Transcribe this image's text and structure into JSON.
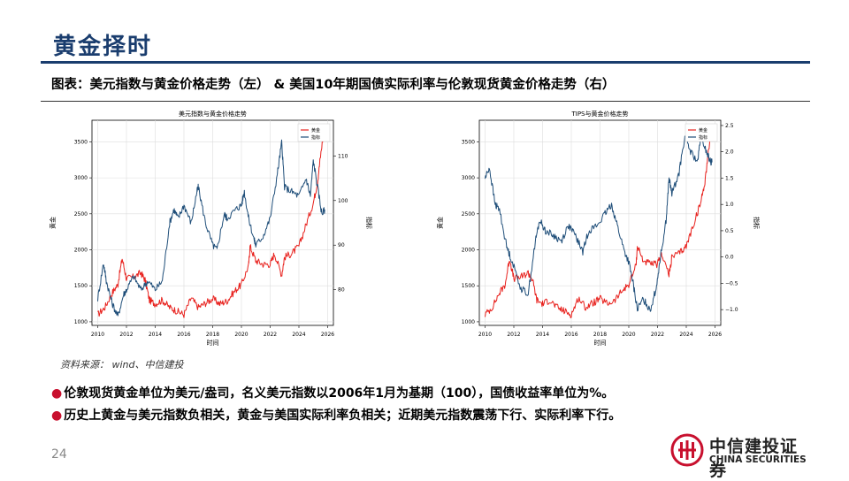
{
  "page": {
    "title": "黄金择时",
    "caption": "图表：美元指数与黄金价格走势（左） & 美国10年期国债实际利率与伦敦现货黄金价格走势（右）",
    "source": "资料来源： wind、中信建投",
    "bullets": [
      "伦敦现货黄金单位为美元/盎司，名义美元指数以2006年1月为基期（100），国债收益率单位为%。",
      "历史上黄金与美元指数负相关，黄金与美国实际利率负相关；近期美元指数震荡下行、实际利率下行。"
    ],
    "page_number": "24",
    "logo_cn": "中信建投证券",
    "logo_en": "CHINA SECURITIES"
  },
  "colors": {
    "gold": "#e8211d",
    "index": "#1f4e79",
    "brand": "#1a3d6e",
    "logo": "#c8102e"
  },
  "chart_data": [
    {
      "type": "line",
      "title": "美元指数与黄金价格走势",
      "xlabel": "时间",
      "ylabel_left": "黄金",
      "ylabel_right": "指标",
      "xlim": [
        2009.6,
        2026.4
      ],
      "ylim_left": [
        950,
        3800
      ],
      "ylim_right": [
        72,
        118
      ],
      "x_ticks": [
        "2010",
        "2012",
        "2014",
        "2016",
        "2018",
        "2020",
        "2022",
        "2024",
        "2026"
      ],
      "y_ticks_left": [
        "1000",
        "1500",
        "2000",
        "2500",
        "3000",
        "3500"
      ],
      "y_ticks_right": [
        "80",
        "90",
        "100",
        "110"
      ],
      "legend": [
        "黄金",
        "指标"
      ],
      "legend_position": "top-right",
      "grid": true,
      "series": [
        {
          "name": "黄金",
          "axis": "left",
          "color": "#e8211d",
          "x": [
            2010.0,
            2010.5,
            2011.0,
            2011.4,
            2011.7,
            2012.0,
            2012.5,
            2013.0,
            2013.3,
            2013.6,
            2014.0,
            2014.5,
            2015.0,
            2015.5,
            2016.0,
            2016.5,
            2017.0,
            2017.5,
            2018.0,
            2018.5,
            2019.0,
            2019.5,
            2020.0,
            2020.5,
            2020.6,
            2021.0,
            2021.5,
            2022.0,
            2022.3,
            2022.8,
            2023.0,
            2023.5,
            2024.0,
            2024.5,
            2025.0,
            2025.3,
            2025.5,
            2025.8
          ],
          "y": [
            1100,
            1200,
            1400,
            1520,
            1880,
            1600,
            1620,
            1680,
            1580,
            1300,
            1250,
            1300,
            1200,
            1150,
            1100,
            1330,
            1200,
            1260,
            1320,
            1250,
            1290,
            1420,
            1520,
            1780,
            2050,
            1850,
            1800,
            1800,
            1950,
            1650,
            1900,
            1950,
            2050,
            2350,
            2650,
            2950,
            3300,
            3750
          ]
        },
        {
          "name": "指标",
          "axis": "right",
          "color": "#1f4e79",
          "x": [
            2010.0,
            2010.4,
            2010.6,
            2011.0,
            2011.4,
            2011.8,
            2012.0,
            2012.5,
            2013.0,
            2013.5,
            2014.0,
            2014.5,
            2015.0,
            2015.3,
            2015.6,
            2016.0,
            2016.5,
            2016.9,
            2017.0,
            2017.5,
            2018.0,
            2018.3,
            2018.8,
            2019.0,
            2019.6,
            2020.0,
            2020.2,
            2020.5,
            2020.9,
            2021.0,
            2021.5,
            2022.0,
            2022.5,
            2022.8,
            2023.0,
            2023.5,
            2024.0,
            2024.5,
            2024.8,
            2025.0,
            2025.3,
            2025.6,
            2025.8
          ],
          "y": [
            78,
            86,
            82,
            77,
            74,
            79,
            80,
            83,
            80,
            82,
            80,
            82,
            95,
            98,
            96,
            99,
            95,
            102,
            103,
            95,
            90,
            89,
            97,
            96,
            98,
            99,
            102,
            96,
            91,
            90,
            92,
            96,
            106,
            113,
            103,
            102,
            101,
            105,
            101,
            109,
            103,
            97,
            98
          ]
        }
      ]
    },
    {
      "type": "line",
      "title": "TIPS与黄金价格走势",
      "xlabel": "时间",
      "ylabel_left": "黄金",
      "ylabel_right": "指标",
      "xlim": [
        2009.6,
        2026.4
      ],
      "ylim_left": [
        950,
        3800
      ],
      "ylim_right": [
        -1.3,
        2.6
      ],
      "x_ticks": [
        "2010",
        "2012",
        "2014",
        "2016",
        "2018",
        "2020",
        "2022",
        "2024",
        "2026"
      ],
      "y_ticks_left": [
        "1000",
        "1500",
        "2000",
        "2500",
        "3000",
        "3500"
      ],
      "y_ticks_right": [
        "−1.0",
        "−0.5",
        "0.0",
        "0.5",
        "1.0",
        "1.5",
        "2.0",
        "2.5"
      ],
      "legend": [
        "黄金",
        "指标"
      ],
      "legend_position": "top-right",
      "grid": true,
      "series": [
        {
          "name": "黄金",
          "axis": "left",
          "color": "#e8211d",
          "x": [
            2010.0,
            2010.5,
            2011.0,
            2011.4,
            2011.7,
            2012.0,
            2012.5,
            2013.0,
            2013.3,
            2013.6,
            2014.0,
            2014.5,
            2015.0,
            2015.5,
            2016.0,
            2016.5,
            2017.0,
            2017.5,
            2018.0,
            2018.5,
            2019.0,
            2019.5,
            2020.0,
            2020.5,
            2020.6,
            2021.0,
            2021.5,
            2022.0,
            2022.3,
            2022.8,
            2023.0,
            2023.5,
            2024.0,
            2024.5,
            2025.0,
            2025.3,
            2025.5,
            2025.8
          ],
          "y": [
            1100,
            1200,
            1400,
            1520,
            1880,
            1600,
            1620,
            1680,
            1580,
            1300,
            1250,
            1300,
            1200,
            1150,
            1100,
            1330,
            1200,
            1260,
            1320,
            1250,
            1290,
            1420,
            1520,
            1780,
            2050,
            1850,
            1800,
            1800,
            1950,
            1650,
            1900,
            1950,
            2050,
            2350,
            2650,
            2950,
            3300,
            3750
          ]
        },
        {
          "name": "指标",
          "axis": "right",
          "color": "#1f4e79",
          "x": [
            2010.0,
            2010.3,
            2010.7,
            2011.0,
            2011.5,
            2011.9,
            2012.5,
            2013.0,
            2013.5,
            2013.8,
            2014.2,
            2014.8,
            2015.3,
            2015.8,
            2016.3,
            2016.8,
            2017.2,
            2017.8,
            2018.3,
            2018.8,
            2019.2,
            2019.7,
            2020.0,
            2020.3,
            2020.6,
            2021.0,
            2021.5,
            2021.9,
            2022.2,
            2022.6,
            2022.8,
            2023.0,
            2023.5,
            2023.9,
            2024.3,
            2024.8,
            2025.0,
            2025.4,
            2025.7,
            2025.8
          ],
          "y": [
            1.5,
            1.7,
            1.0,
            0.9,
            0.2,
            -0.1,
            -0.6,
            -0.7,
            0.3,
            0.7,
            0.5,
            0.4,
            0.3,
            0.6,
            0.4,
            0.1,
            0.5,
            0.6,
            0.8,
            1.0,
            0.6,
            0.1,
            -0.1,
            -0.5,
            -1.0,
            -0.8,
            -1.0,
            -0.6,
            0.0,
            0.7,
            1.5,
            1.2,
            1.6,
            2.3,
            2.0,
            1.8,
            2.3,
            2.0,
            1.8,
            1.8
          ]
        }
      ]
    }
  ]
}
